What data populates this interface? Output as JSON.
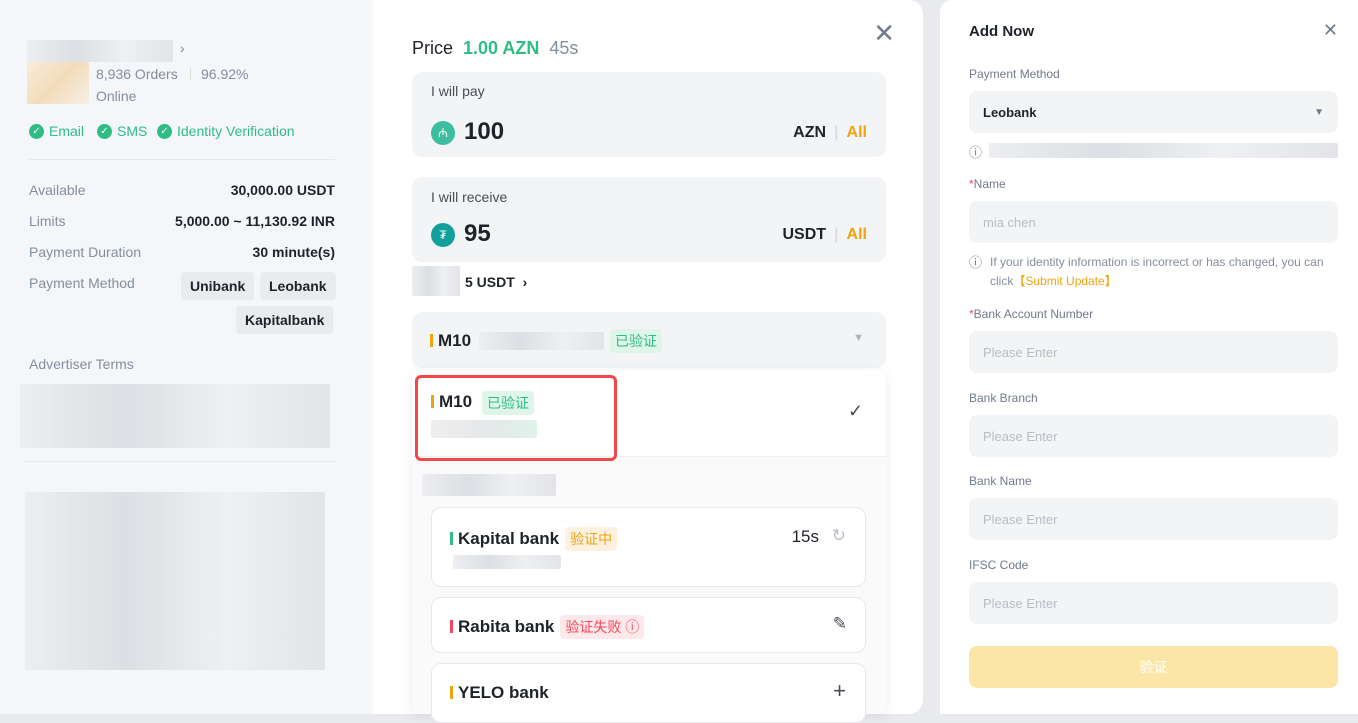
{
  "advertiser": {
    "orders": "8,936 Orders",
    "completion": "96.92%",
    "status": "Online",
    "verifications": [
      "Email",
      "SMS",
      "Identity Verification"
    ],
    "details": [
      {
        "label": "Available",
        "value": "30,000.00 USDT"
      },
      {
        "label": "Limits",
        "value": "5,000.00 ~ 11,130.92 INR"
      },
      {
        "label": "Payment Duration",
        "value": "30 minute(s)"
      }
    ],
    "payment_method_label": "Payment Method",
    "payment_methods": [
      "Unibank",
      "Leobank",
      "Kapitalbank"
    ],
    "terms_label": "Advertiser Terms"
  },
  "order": {
    "price_label": "Price",
    "price": "1.00 AZN",
    "countdown": "45s",
    "pay": {
      "label": "I will pay",
      "amount": "100",
      "currency": "AZN",
      "all": "All"
    },
    "receive": {
      "label": "I will receive",
      "amount": "95",
      "currency": "USDT",
      "all": "All"
    },
    "fee": "5 USDT",
    "selected_method": {
      "name": "M10",
      "status": "已验证"
    },
    "dropdown": {
      "selected": {
        "name": "M10",
        "status": "已验证"
      },
      "items": [
        {
          "name": "Kapital bank",
          "status": "验证中",
          "timer": "15s",
          "bar": "#2ebd85"
        },
        {
          "name": "Rabita bank",
          "status": "验证失败",
          "bar": "#f6465d"
        },
        {
          "name": "YELO bank",
          "bar": "#f0a30a"
        }
      ]
    }
  },
  "add_form": {
    "title": "Add Now",
    "payment_method_label": "Payment Method",
    "payment_method": "Leobank",
    "name_label": "Name",
    "name_value": "mia chen",
    "identity_note": "If your identity information is incorrect or has changed, you can click",
    "submit_update": "【Submit Update】",
    "fields": [
      {
        "label": "Bank Account Number",
        "required": true,
        "placeholder": "Please Enter"
      },
      {
        "label": "Bank Branch",
        "placeholder": "Please Enter"
      },
      {
        "label": "Bank Name",
        "placeholder": "Please Enter"
      },
      {
        "label": "IFSC Code",
        "placeholder": "Please Enter"
      }
    ],
    "submit": "验证"
  },
  "colors": {
    "green": "#2ebd85",
    "orange": "#f0a30a",
    "red": "#f6465d",
    "highlight": "#f04747"
  }
}
